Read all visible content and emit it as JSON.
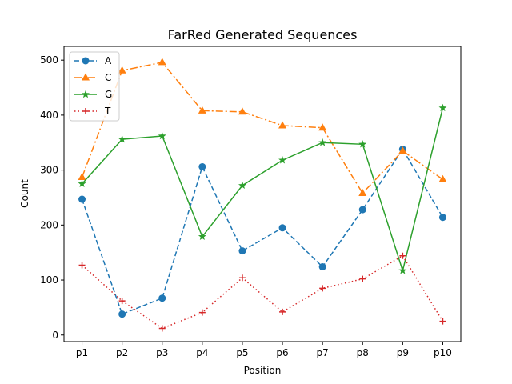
{
  "chart_data": {
    "type": "line",
    "title": "FarRed Generated Sequences",
    "xlabel": "Position",
    "ylabel": "Count",
    "categories": [
      "p1",
      "p2",
      "p3",
      "p4",
      "p5",
      "p6",
      "p7",
      "p8",
      "p9",
      "p10"
    ],
    "ylim": [
      -12,
      525
    ],
    "yticks": [
      0,
      100,
      200,
      300,
      400,
      500
    ],
    "grid": false,
    "legend_position": "top-left",
    "series": [
      {
        "name": "A",
        "values": [
          247,
          38,
          67,
          306,
          153,
          195,
          124,
          228,
          338,
          214
        ],
        "color": "#1f77b4",
        "line_style": "dashed",
        "marker": "circle"
      },
      {
        "name": "C",
        "values": [
          287,
          481,
          496,
          408,
          406,
          381,
          377,
          258,
          335,
          283
        ],
        "color": "#ff7f0e",
        "line_style": "dashdot",
        "marker": "triangle"
      },
      {
        "name": "G",
        "values": [
          275,
          356,
          362,
          179,
          272,
          318,
          350,
          347,
          117,
          413
        ],
        "color": "#2ca02c",
        "line_style": "solid",
        "marker": "star"
      },
      {
        "name": "T",
        "values": [
          127,
          62,
          12,
          41,
          104,
          42,
          85,
          102,
          144,
          25
        ],
        "color": "#d62728",
        "line_style": "dotted",
        "marker": "plus"
      }
    ]
  }
}
